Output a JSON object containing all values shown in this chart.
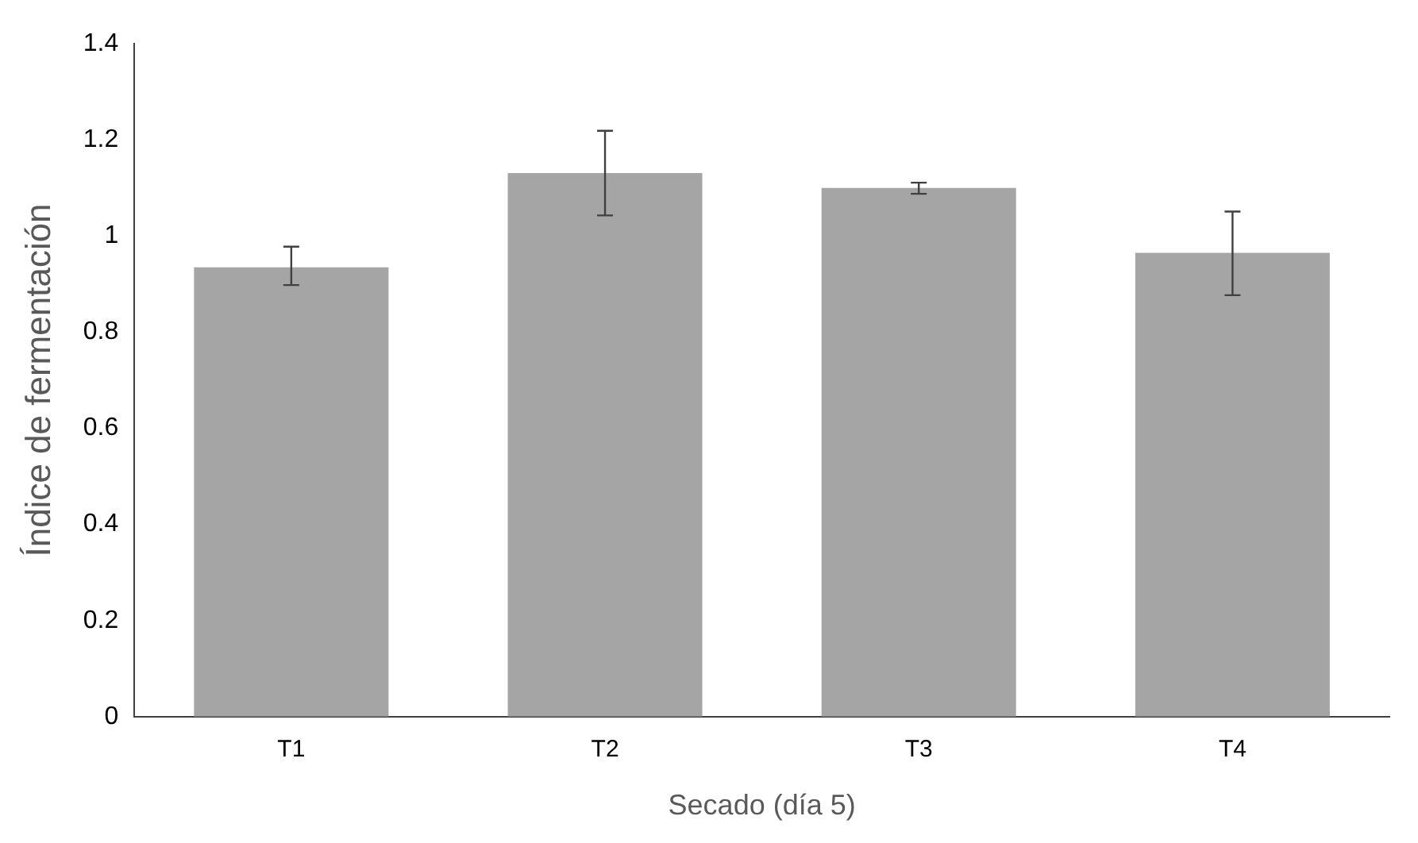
{
  "chart_data": {
    "type": "bar",
    "xlabel": "Secado (día 5)",
    "ylabel": "Índice de fermentación",
    "categories": [
      "T1",
      "T2",
      "T3",
      "T4"
    ],
    "values": [
      0.935,
      1.131,
      1.1,
      0.965
    ],
    "errors": [
      [
        0.898,
        0.978
      ],
      [
        1.043,
        1.219
      ],
      [
        1.088,
        1.111
      ],
      [
        0.877,
        1.051
      ]
    ],
    "color": "#a5a5a5",
    "ylim": [
      0,
      1.4
    ],
    "yticks": [
      0,
      0.2,
      0.4,
      0.6,
      0.8,
      1,
      1.2,
      1.4
    ],
    "grid": false,
    "legend": false
  }
}
